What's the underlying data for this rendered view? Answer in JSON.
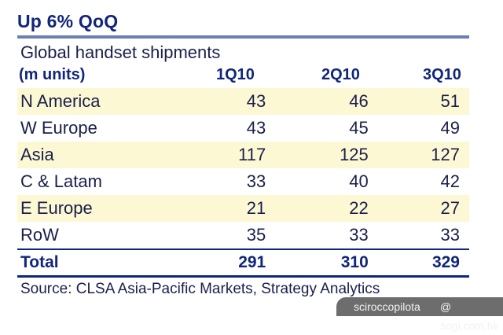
{
  "header": {
    "title": "Up 6% QoQ",
    "subtitle": "Global handset shipments"
  },
  "chart_data": {
    "type": "table",
    "title": "Up 6% QoQ",
    "subtitle": "Global handset shipments",
    "unit_label": "(m units)",
    "columns": [
      "1Q10",
      "2Q10",
      "3Q10"
    ],
    "rows": [
      {
        "label": "N America",
        "values": [
          "43",
          "46",
          "51"
        ]
      },
      {
        "label": "W Europe",
        "values": [
          "43",
          "45",
          "49"
        ]
      },
      {
        "label": "Asia",
        "values": [
          "117",
          "125",
          "127"
        ]
      },
      {
        "label": "C & Latam",
        "values": [
          "33",
          "40",
          "42"
        ]
      },
      {
        "label": "E Europe",
        "values": [
          "21",
          "22",
          "27"
        ]
      },
      {
        "label": "RoW",
        "values": [
          "35",
          "33",
          "33"
        ]
      }
    ],
    "total": {
      "label": "Total",
      "values": [
        "291",
        "310",
        "329"
      ]
    },
    "source": "Source: CLSA Asia-Pacific Markets, Strategy Analytics"
  },
  "colors": {
    "title": "#10267a",
    "rule": "#6b7fb3",
    "band": "#fdf8d4"
  },
  "watermark": {
    "author": "sciroccopilota",
    "site": "@ sogi.com.tw"
  }
}
